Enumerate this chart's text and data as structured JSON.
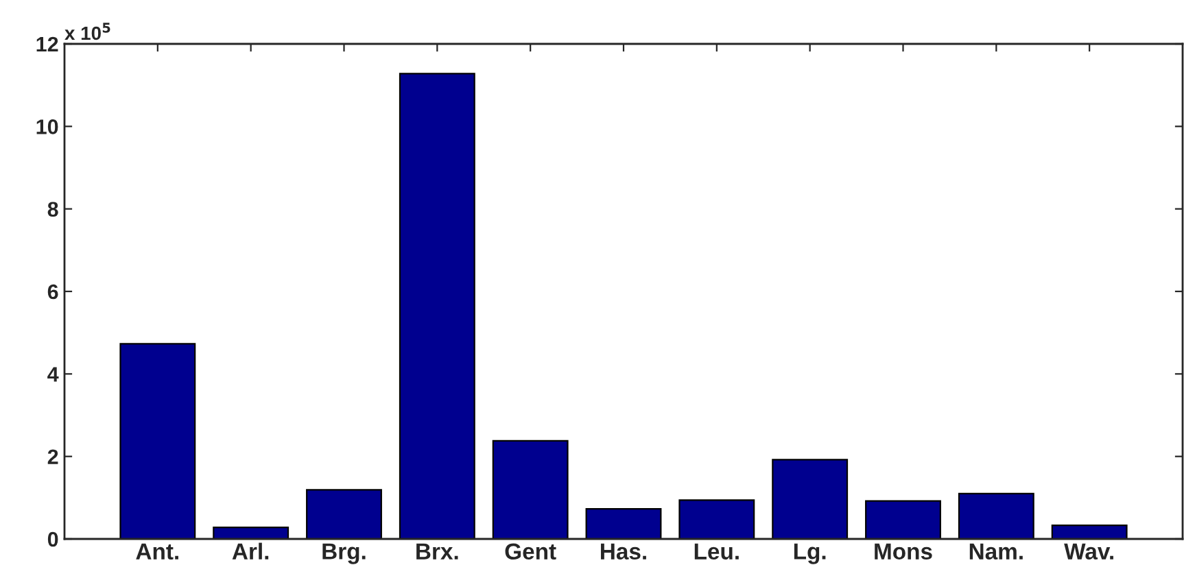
{
  "chart_data": {
    "type": "bar",
    "categories": [
      "Ant.",
      "Arl.",
      "Brg.",
      "Brx.",
      "Gent",
      "Has.",
      "Leu.",
      "Lg.",
      "Mons",
      "Nam.",
      "Wav."
    ],
    "values": [
      4.73,
      0.28,
      1.19,
      11.28,
      2.38,
      0.73,
      0.94,
      1.92,
      0.92,
      1.1,
      0.33
    ],
    "color": "#00008f",
    "ylim": [
      0,
      12
    ],
    "yticks": [
      0,
      2,
      4,
      6,
      8,
      10,
      12
    ],
    "annotations": [
      "x 10$^{5}$"
    ],
    "grid": false,
    "legend": false
  }
}
